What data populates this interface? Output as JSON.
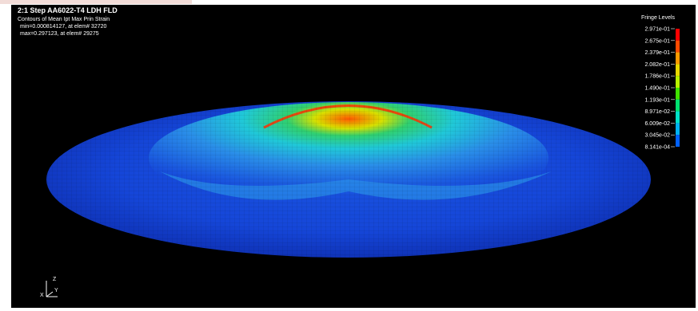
{
  "header": {
    "title": "2:1 Step AA6022-T4 LDH FLD",
    "subtitle": "Contours of Mean  Ipt Max Prin Strain",
    "min_line": "min=0.000814127, at elem# 32720",
    "max_line": "max=0.297123, at elem# 29275"
  },
  "legend": {
    "title": "Fringe Levels",
    "levels": [
      "2.971e-01",
      "2.675e-01",
      "2.379e-01",
      "2.082e-01",
      "1.786e-01",
      "1.490e-01",
      "1.193e-01",
      "8.971e-02",
      "6.009e-02",
      "3.045e-02",
      "8.141e-04"
    ]
  },
  "triad": {
    "z": "Z",
    "y": "Y",
    "x": "X"
  }
}
